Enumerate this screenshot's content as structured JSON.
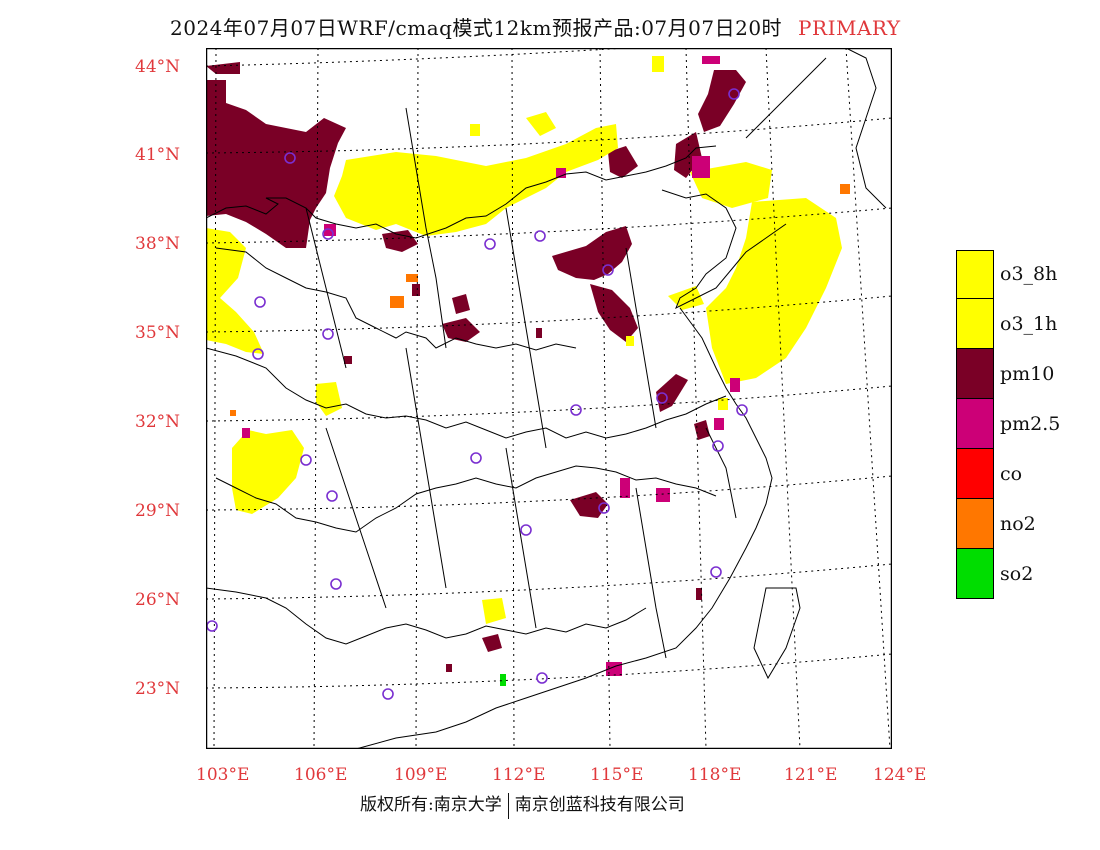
{
  "title": {
    "main": "2024年07月07日WRF/cmaq模式12km预报产品:07月07日20时",
    "tag": "PRIMARY"
  },
  "colors": {
    "o3_8h": "#ffff00",
    "o3_1h": "#ffff00",
    "pm10": "#7a0026",
    "pm25": "#cc0077",
    "co": "#ff0000",
    "no2": "#ff7700",
    "so2": "#00dd00",
    "axis_label": "#e0383b",
    "station_marker": "#7a2fd0"
  },
  "legend": [
    {
      "label": "o3_8h",
      "color": "#ffff00"
    },
    {
      "label": "o3_1h",
      "color": "#ffff00"
    },
    {
      "label": "pm10",
      "color": "#7a0026"
    },
    {
      "label": "pm2.5",
      "color": "#cc0077"
    },
    {
      "label": "co",
      "color": "#ff0000"
    },
    {
      "label": "no2",
      "color": "#ff7700"
    },
    {
      "label": "so2",
      "color": "#00dd00"
    }
  ],
  "latitude_labels": [
    "44°N",
    "41°N",
    "38°N",
    "35°N",
    "32°N",
    "29°N",
    "26°N",
    "23°N"
  ],
  "longitude_labels": [
    "103°E",
    "106°E",
    "109°E",
    "112°E",
    "115°E",
    "118°E",
    "121°E",
    "124°E"
  ],
  "copyright": {
    "left": "版权所有:南京大学",
    "right": "南京创蓝科技有限公司"
  }
}
